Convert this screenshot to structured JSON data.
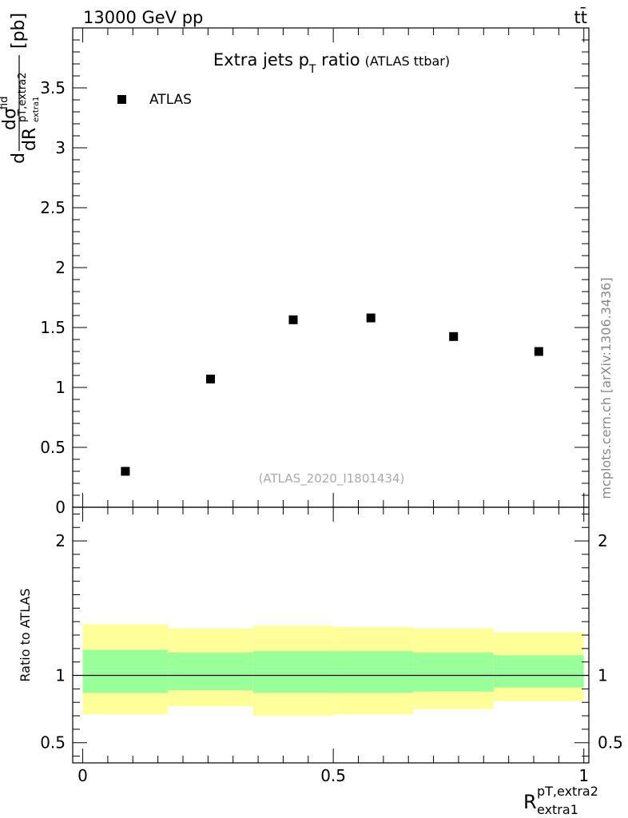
{
  "header": {
    "energy_label": "13000 GeV pp",
    "process_label": "tt̄"
  },
  "side_label": "mcplots.cern.ch [arXiv:1306.3436]",
  "watermark": "(ATLAS_2020_I1801434)",
  "chart_data": [
    {
      "type": "scatter",
      "panel": "main",
      "title_main": "Extra jets p",
      "title_sub": "T",
      "title_tail": " ratio",
      "title_note": "(ATLAS ttbar)",
      "ylabel": "dσ^fid / dR_extra1^pT,extra2 [pb]",
      "ylabel_parts": {
        "lead": "d",
        "num": "dσ",
        "num_sup": "fid",
        "den": "dR",
        "den_sup": "pT,extra2",
        "den_sub": "extra1",
        "unit": "[pb]"
      },
      "xlim": [
        -0.02,
        1.01
      ],
      "ylim": [
        0,
        4.0
      ],
      "y_ticks": [
        0,
        0.5,
        1,
        1.5,
        2,
        2.5,
        3,
        3.5
      ],
      "y_tick_labels": [
        "0",
        "0.5",
        "1",
        "1.5",
        "2",
        "2.5",
        "3",
        "3.5"
      ],
      "legend": {
        "position": "top-left",
        "entries": [
          {
            "label": "ATLAS",
            "marker": "square"
          }
        ]
      },
      "series": [
        {
          "name": "ATLAS",
          "x": [
            0.085,
            0.255,
            0.42,
            0.575,
            0.74,
            0.91
          ],
          "y": [
            0.3,
            1.07,
            1.565,
            1.58,
            1.425,
            1.3
          ]
        }
      ]
    },
    {
      "type": "area",
      "panel": "ratio",
      "ylabel": "Ratio to ATLAS",
      "xlabel": "R_extra1^pT,extra2",
      "xlabel_parts": {
        "base": "R",
        "sup": "pT,extra2",
        "sub": "extra1"
      },
      "xlim": [
        -0.02,
        1.01
      ],
      "ylim": [
        0.35,
        2.25
      ],
      "x_ticks": [
        0,
        0.5,
        1
      ],
      "x_tick_labels": [
        "0",
        "0.5",
        "1"
      ],
      "y_ticks": [
        0.5,
        1,
        2
      ],
      "y_tick_labels": [
        "0.5",
        "1",
        "2"
      ],
      "reference_line": 1.0,
      "bins": [
        {
          "x_lo": 0.0,
          "x_hi": 0.17,
          "inner": [
            0.87,
            1.19
          ],
          "outer": [
            0.71,
            1.38
          ]
        },
        {
          "x_lo": 0.17,
          "x_hi": 0.34,
          "inner": [
            0.89,
            1.17
          ],
          "outer": [
            0.77,
            1.35
          ]
        },
        {
          "x_lo": 0.34,
          "x_hi": 0.5,
          "inner": [
            0.87,
            1.18
          ],
          "outer": [
            0.7,
            1.37
          ]
        },
        {
          "x_lo": 0.5,
          "x_hi": 0.66,
          "inner": [
            0.87,
            1.18
          ],
          "outer": [
            0.71,
            1.36
          ]
        },
        {
          "x_lo": 0.66,
          "x_hi": 0.82,
          "inner": [
            0.88,
            1.17
          ],
          "outer": [
            0.75,
            1.35
          ]
        },
        {
          "x_lo": 0.82,
          "x_hi": 1.0,
          "inner": [
            0.91,
            1.15
          ],
          "outer": [
            0.81,
            1.32
          ]
        }
      ],
      "colors": {
        "inner": "#99ff99",
        "outer": "#ffff99",
        "line": "#000000"
      }
    }
  ]
}
